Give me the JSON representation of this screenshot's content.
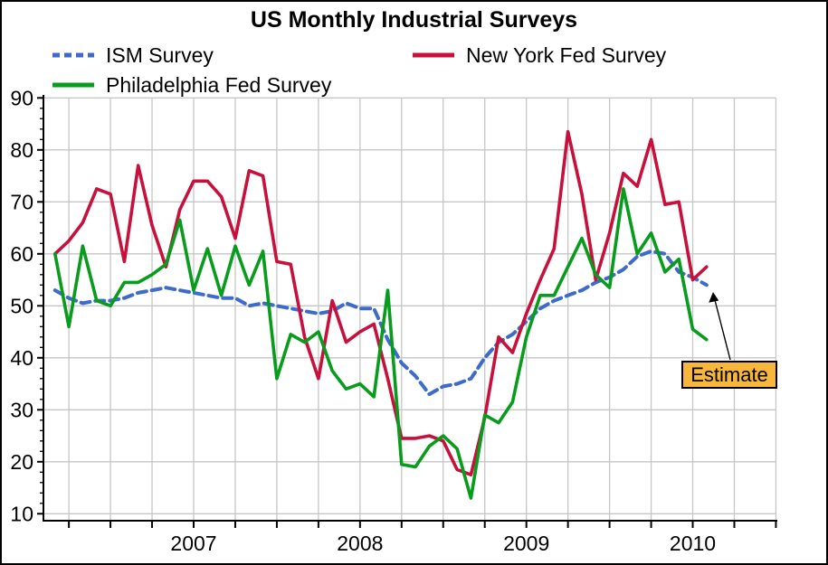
{
  "title": "US Monthly Industrial Surveys",
  "legend": {
    "items": [
      {
        "name": "ism",
        "label": "ISM Survey",
        "color": "#3D6BCC",
        "dash": "8 5"
      },
      {
        "name": "nyfed",
        "label": "New York Fed Survey",
        "color": "#C8103C",
        "dash": ""
      },
      {
        "name": "philly",
        "label": "Philadelphia Fed Survey",
        "color": "#089C1C",
        "dash": ""
      }
    ]
  },
  "annotation": {
    "label": "Estimate",
    "box_color": "#F6B73C",
    "points_to": "last ISM value (estimated)"
  },
  "axes": {
    "y_tick_labels": [
      "90",
      "80",
      "70",
      "60",
      "50",
      "40",
      "30",
      "20",
      "10"
    ],
    "x_year_labels": [
      "2007",
      "2008",
      "2009",
      "2010"
    ]
  },
  "colors": {
    "grid": "#C6C6C6",
    "axis": "#000000",
    "background": "#FFFFFF",
    "annotation_fill": "#F6B73C"
  },
  "chart_data": {
    "type": "line",
    "title": "US Monthly Industrial Surveys",
    "xlabel": "",
    "ylabel": "",
    "ylim": [
      8.7,
      90
    ],
    "y_ticks": [
      10,
      20,
      30,
      40,
      50,
      60,
      70,
      80,
      90
    ],
    "grid": "on",
    "legend_position": "top",
    "x_frequency": "monthly",
    "x": [
      "2006-09",
      "2006-10",
      "2006-11",
      "2006-12",
      "2007-01",
      "2007-02",
      "2007-03",
      "2007-04",
      "2007-05",
      "2007-06",
      "2007-07",
      "2007-08",
      "2007-09",
      "2007-10",
      "2007-11",
      "2007-12",
      "2008-01",
      "2008-02",
      "2008-03",
      "2008-04",
      "2008-05",
      "2008-06",
      "2008-07",
      "2008-08",
      "2008-09",
      "2008-10",
      "2008-11",
      "2008-12",
      "2009-01",
      "2009-02",
      "2009-03",
      "2009-04",
      "2009-05",
      "2009-06",
      "2009-07",
      "2009-08",
      "2009-09",
      "2009-10",
      "2009-11",
      "2009-12",
      "2010-01",
      "2010-02",
      "2010-03",
      "2010-04",
      "2010-05",
      "2010-06",
      "2010-07",
      "2010-08"
    ],
    "series": [
      {
        "name": "ISM Survey",
        "color": "#3D6BCC",
        "style": "dashed",
        "note": "final value is an estimate",
        "values": [
          53,
          51.5,
          50.5,
          51,
          51,
          51.5,
          52.5,
          53,
          53.5,
          53,
          52.5,
          52,
          51.5,
          51.5,
          50,
          50.5,
          50,
          49.5,
          49,
          48.5,
          49,
          50.5,
          49.5,
          49.5,
          43.5,
          39,
          36.5,
          33,
          34.5,
          35,
          36,
          40,
          43,
          44.5,
          47,
          49.5,
          51,
          52,
          53,
          54.5,
          55.5,
          57,
          59.5,
          60.5,
          60,
          56.5,
          55.5,
          54
        ]
      },
      {
        "name": "New York Fed Survey",
        "color": "#C8103C",
        "style": "solid",
        "values": [
          60,
          62.5,
          66,
          72.5,
          71.5,
          58.5,
          77,
          65.5,
          57.5,
          68.5,
          74,
          74,
          71,
          63,
          76,
          75,
          58.5,
          58,
          44,
          36,
          51,
          43,
          45,
          46.5,
          36,
          24.5,
          24.5,
          25,
          24,
          18.5,
          17.5,
          28.5,
          44,
          41,
          48.5,
          55,
          61,
          83.5,
          71.5,
          55,
          64,
          75.5,
          73,
          82,
          69.5,
          70,
          55,
          57.5
        ]
      },
      {
        "name": "Philadelphia Fed Survey",
        "color": "#089C1C",
        "style": "solid",
        "values": [
          60,
          46,
          61.5,
          51,
          50,
          54.5,
          54.5,
          56,
          58,
          66.5,
          53,
          61,
          52,
          61.5,
          54,
          60.5,
          36,
          44.5,
          43,
          45,
          37.5,
          34,
          35,
          32.5,
          53,
          19.5,
          19,
          23,
          25,
          22.5,
          13,
          29,
          27.5,
          31.5,
          44,
          52,
          52,
          57.5,
          63,
          56,
          53.5,
          72.5,
          60,
          64,
          56.5,
          59,
          45.5,
          43.5
        ]
      }
    ]
  }
}
